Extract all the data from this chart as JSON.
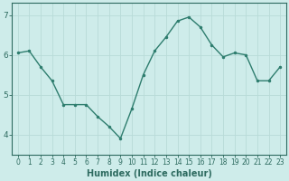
{
  "x": [
    0,
    1,
    2,
    3,
    4,
    5,
    6,
    7,
    8,
    9,
    10,
    11,
    12,
    13,
    14,
    15,
    16,
    17,
    18,
    19,
    20,
    21,
    22,
    23
  ],
  "y": [
    6.05,
    6.1,
    5.7,
    5.35,
    4.75,
    4.75,
    4.75,
    4.45,
    4.2,
    3.9,
    4.65,
    5.5,
    6.1,
    6.45,
    6.85,
    6.95,
    6.7,
    6.25,
    5.95,
    6.05,
    6.0,
    5.35,
    5.35,
    5.7
  ],
  "line_color": "#2e7d6e",
  "marker_color": "#2e7d6e",
  "bg_color": "#ceecea",
  "grid_color": "#b8dbd8",
  "axis_label_color": "#2e6b60",
  "tick_color": "#2e6b60",
  "xlabel": "Humidex (Indice chaleur)",
  "ylim": [
    3.5,
    7.3
  ],
  "yticks": [
    4,
    5,
    6,
    7
  ],
  "xlim": [
    -0.5,
    23.5
  ],
  "tick_fontsize": 5.5,
  "xlabel_fontsize": 7.0,
  "linewidth": 1.0,
  "markersize": 3.0
}
